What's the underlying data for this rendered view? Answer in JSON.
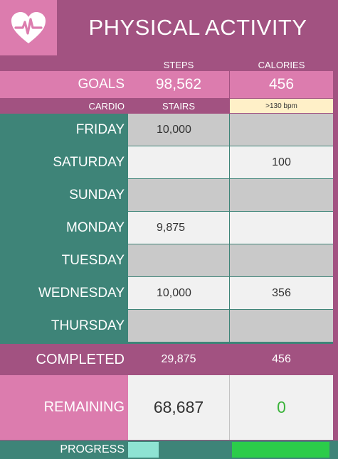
{
  "header": {
    "title": "PHYSICAL ACTIVITY",
    "logo_icon": "heart-pulse-icon"
  },
  "columns": {
    "steps": "STEPS",
    "calories": "CALORIES"
  },
  "goals": {
    "label": "GOALS",
    "steps": "98,562",
    "calories": "456"
  },
  "subheader": {
    "cardio": "CARDIO",
    "stairs": "STAIRS",
    "heart_rate": ">130 bpm"
  },
  "days": [
    {
      "label": "FRIDAY",
      "steps": "10,000",
      "calories": ""
    },
    {
      "label": "SATURDAY",
      "steps": "",
      "calories": "100"
    },
    {
      "label": "SUNDAY",
      "steps": "",
      "calories": ""
    },
    {
      "label": "MONDAY",
      "steps": "9,875",
      "calories": ""
    },
    {
      "label": "TUESDAY",
      "steps": "",
      "calories": ""
    },
    {
      "label": "WEDNESDAY",
      "steps": "10,000",
      "calories": "356"
    },
    {
      "label": "THURSDAY",
      "steps": "",
      "calories": ""
    }
  ],
  "completed": {
    "label": "COMPLETED",
    "steps": "29,875",
    "calories": "456"
  },
  "remaining": {
    "label": "REMAINING",
    "steps": "68,687",
    "calories": "0"
  },
  "progress": {
    "label": "PROGRESS",
    "steps_fraction": 0.303,
    "calories_fraction": 1.0
  },
  "colors": {
    "plum": "#a25281",
    "pink": "#dc7cae",
    "teal": "#3e8478",
    "gray": "#c9c9c9",
    "light": "#f1f1f1",
    "cream": "#fff0c8",
    "progress_steps": "#8ee3d3",
    "progress_calories": "#2bcc4a",
    "zero_green": "#3cb43c"
  }
}
